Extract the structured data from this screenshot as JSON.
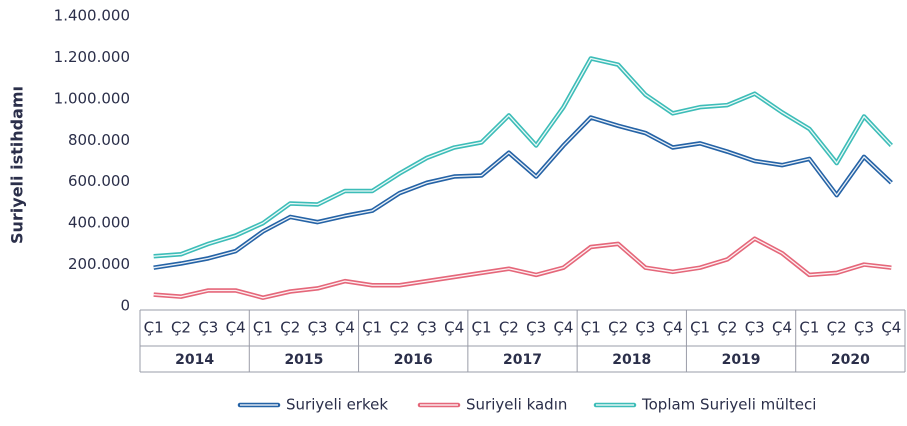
{
  "chart_data": {
    "type": "line",
    "y_label": "Suriyeli istihdamı",
    "categories": [
      "Ç1",
      "Ç2",
      "Ç3",
      "Ç4",
      "Ç1",
      "Ç2",
      "Ç3",
      "Ç4",
      "Ç1",
      "Ç2",
      "Ç3",
      "Ç4",
      "Ç1",
      "Ç2",
      "Ç3",
      "Ç4",
      "Ç1",
      "Ç2",
      "Ç3",
      "Ç4",
      "Ç1",
      "Ç2",
      "Ç3",
      "Ç4",
      "Ç1",
      "Ç2",
      "Ç3",
      "Ç4"
    ],
    "groups": [
      "2014",
      "2015",
      "2016",
      "2017",
      "2018",
      "2019",
      "2020"
    ],
    "ylim": [
      0,
      1400000
    ],
    "yticks": [
      0,
      {
        "value": 200000,
        "label": "200.000"
      },
      {
        "value": 400000,
        "label": "400.000"
      },
      {
        "value": 600000,
        "label": "600.000"
      },
      {
        "value": 800000,
        "label": "800.000"
      },
      {
        "value": 1000000,
        "label": "1.000.000"
      },
      {
        "value": 1200000,
        "label": "1.200.000"
      },
      {
        "value": 1400000,
        "label": "1.400.000"
      }
    ],
    "series": [
      {
        "name": "Suriyeli erkek",
        "color": "#2563a6",
        "values": [
          185000,
          205000,
          230000,
          265000,
          360000,
          430000,
          405000,
          435000,
          460000,
          545000,
          595000,
          625000,
          630000,
          740000,
          625000,
          775000,
          910000,
          870000,
          835000,
          765000,
          785000,
          745000,
          700000,
          680000,
          710000,
          535000,
          720000,
          595000
        ]
      },
      {
        "name": "Suriyeli kadın",
        "color": "#e5677a",
        "values": [
          55000,
          45000,
          75000,
          75000,
          40000,
          70000,
          85000,
          120000,
          100000,
          100000,
          120000,
          140000,
          160000,
          180000,
          150000,
          185000,
          285000,
          300000,
          185000,
          165000,
          185000,
          225000,
          325000,
          255000,
          150000,
          160000,
          200000,
          185000
        ]
      },
      {
        "name": "Toplam Suriyeli mülteci",
        "color": "#3dbdb8",
        "values": [
          240000,
          250000,
          300000,
          340000,
          400000,
          495000,
          490000,
          555000,
          555000,
          640000,
          715000,
          765000,
          790000,
          920000,
          775000,
          960000,
          1195000,
          1165000,
          1020000,
          930000,
          960000,
          970000,
          1025000,
          935000,
          855000,
          690000,
          915000,
          775000
        ]
      }
    ],
    "legend": "bottom"
  }
}
